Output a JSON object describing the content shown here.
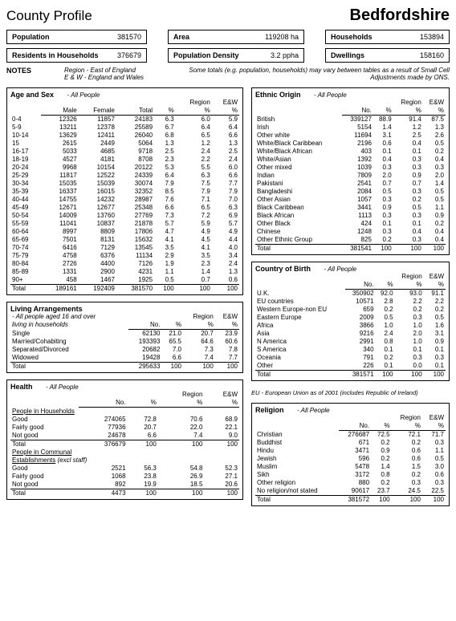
{
  "header": {
    "left": "County Profile",
    "right": "Bedfordshire"
  },
  "summary": {
    "left": [
      {
        "label": "Population",
        "value": "381570"
      },
      {
        "label": "Residents in Households",
        "value": "376679"
      }
    ],
    "mid": [
      {
        "label": "Area",
        "value": "119208 ha"
      },
      {
        "label": "Population Density",
        "value": "3.2 ppha"
      }
    ],
    "right": [
      {
        "label": "Households",
        "value": "153894"
      },
      {
        "label": "Dwellings",
        "value": "158160"
      }
    ]
  },
  "notes": {
    "label": "NOTES",
    "region_lines": [
      "Region - East of England",
      "E & W - England and Wales"
    ],
    "disclaimer": "Some totals (e.g. population, households) may vary between tables as a result of Small Cell Adjustments made by ONS."
  },
  "age_sex": {
    "title": "Age and Sex",
    "sub": "- All People",
    "cols": [
      "",
      "Male",
      "Female",
      "Total",
      "%",
      "Region %",
      "E&W %"
    ],
    "rows": [
      [
        "0-4",
        "12326",
        "11857",
        "24183",
        "6.3",
        "6.0",
        "5.9"
      ],
      [
        "5-9",
        "13211",
        "12378",
        "25589",
        "6.7",
        "6.4",
        "6.4"
      ],
      [
        "10-14",
        "13629",
        "12411",
        "26040",
        "6.8",
        "6.5",
        "6.6"
      ],
      [
        "15",
        "2615",
        "2449",
        "5064",
        "1.3",
        "1.2",
        "1.3"
      ],
      [
        "16-17",
        "5033",
        "4685",
        "9718",
        "2.5",
        "2.4",
        "2.5"
      ],
      [
        "18-19",
        "4527",
        "4181",
        "8708",
        "2.3",
        "2.2",
        "2.4"
      ],
      [
        "20-24",
        "9968",
        "10154",
        "20122",
        "5.3",
        "5.5",
        "6.0"
      ],
      [
        "25-29",
        "11817",
        "12522",
        "24339",
        "6.4",
        "6.3",
        "6.6"
      ],
      [
        "30-34",
        "15035",
        "15039",
        "30074",
        "7.9",
        "7.5",
        "7.7"
      ],
      [
        "35-39",
        "16337",
        "16015",
        "32352",
        "8.5",
        "7.9",
        "7.9"
      ],
      [
        "40-44",
        "14755",
        "14232",
        "28987",
        "7.6",
        "7.1",
        "7.0"
      ],
      [
        "45-49",
        "12671",
        "12677",
        "25348",
        "6.6",
        "6.5",
        "6.3"
      ],
      [
        "50-54",
        "14009",
        "13760",
        "27769",
        "7.3",
        "7.2",
        "6.9"
      ],
      [
        "55-59",
        "11041",
        "10837",
        "21878",
        "5.7",
        "5.9",
        "5.7"
      ],
      [
        "60-64",
        "8997",
        "8809",
        "17806",
        "4.7",
        "4.9",
        "4.9"
      ],
      [
        "65-69",
        "7501",
        "8131",
        "15632",
        "4.1",
        "4.5",
        "4.4"
      ],
      [
        "70-74",
        "6416",
        "7129",
        "13545",
        "3.5",
        "4.1",
        "4.0"
      ],
      [
        "75-79",
        "4758",
        "6376",
        "11134",
        "2.9",
        "3.5",
        "3.4"
      ],
      [
        "80-84",
        "2726",
        "4400",
        "7126",
        "1.9",
        "2.3",
        "2.4"
      ],
      [
        "85-89",
        "1331",
        "2900",
        "4231",
        "1.1",
        "1.4",
        "1.3"
      ],
      [
        "90+",
        "458",
        "1467",
        "1925",
        "0.5",
        "0.7",
        "0.6"
      ]
    ],
    "total": [
      "Total",
      "189161",
      "192409",
      "381570",
      "100",
      "100",
      "100"
    ]
  },
  "living": {
    "title": "Living Arrangements",
    "sub_lines": [
      "- All people aged 16 and over",
      "living in households"
    ],
    "cols": [
      "",
      "No.",
      "%",
      "Region %",
      "E&W %"
    ],
    "rows": [
      [
        "Single",
        "62130",
        "21.0",
        "20.7",
        "23.9"
      ],
      [
        "Married/Cohabiting",
        "193393",
        "65.5",
        "64.6",
        "60.6"
      ],
      [
        "Separated/Divorced",
        "20682",
        "7.0",
        "7.3",
        "7.8"
      ],
      [
        "Widowed",
        "19428",
        "6.6",
        "7.4",
        "7.7"
      ]
    ],
    "total": [
      "Total",
      "295633",
      "100",
      "100",
      "100"
    ]
  },
  "health": {
    "title": "Health",
    "sub": "- All People",
    "cols": [
      "",
      "No.",
      "%",
      "Region %",
      "E&W %"
    ],
    "group1_label": "People in Households",
    "rows1": [
      [
        "Good",
        "274065",
        "72.8",
        "70.6",
        "68.9"
      ],
      [
        "Fairly good",
        "77936",
        "20.7",
        "22.0",
        "22.1"
      ],
      [
        "Not good",
        "24678",
        "6.6",
        "7.4",
        "9.0"
      ]
    ],
    "total1": [
      "Total",
      "376679",
      "100",
      "100",
      "100"
    ],
    "group2_label_a": "People in Communal",
    "group2_label_b": "Establishments",
    "group2_note": "(excl staff)",
    "rows2": [
      [
        "Good",
        "2521",
        "56.3",
        "54.8",
        "52.3"
      ],
      [
        "Fairly good",
        "1068",
        "23.8",
        "26.9",
        "27.1"
      ],
      [
        "Not good",
        "892",
        "19.9",
        "18.5",
        "20.6"
      ]
    ],
    "total2": [
      "Total",
      "4473",
      "100",
      "100",
      "100"
    ]
  },
  "ethnic": {
    "title": "Ethnic Origin",
    "sub": "- All People",
    "cols": [
      "",
      "No.",
      "%",
      "Region %",
      "E&W %"
    ],
    "rows": [
      [
        "British",
        "339127",
        "88.9",
        "91.4",
        "87.5"
      ],
      [
        "Irish",
        "5154",
        "1.4",
        "1.2",
        "1.3"
      ],
      [
        "Other white",
        "11694",
        "3.1",
        "2.5",
        "2.6"
      ],
      [
        "White/Black Caribbean",
        "2196",
        "0.6",
        "0.4",
        "0.5"
      ],
      [
        "White/Black African",
        "403",
        "0.1",
        "0.1",
        "0.2"
      ],
      [
        "White/Asian",
        "1392",
        "0.4",
        "0.3",
        "0.4"
      ],
      [
        "Other mixed",
        "1039",
        "0.3",
        "0.3",
        "0.3"
      ],
      [
        "Indian",
        "7809",
        "2.0",
        "0.9",
        "2.0"
      ],
      [
        "Pakistani",
        "2541",
        "0.7",
        "0.7",
        "1.4"
      ],
      [
        "Bangladeshi",
        "2084",
        "0.5",
        "0.3",
        "0.5"
      ],
      [
        "Other Asian",
        "1057",
        "0.3",
        "0.2",
        "0.5"
      ],
      [
        "Black Caribbean",
        "3441",
        "0.9",
        "0.5",
        "1.1"
      ],
      [
        "Black African",
        "1113",
        "0.3",
        "0.3",
        "0.9"
      ],
      [
        "Other Black",
        "424",
        "0.1",
        "0.1",
        "0.2"
      ],
      [
        "Chinese",
        "1248",
        "0.3",
        "0.4",
        "0.4"
      ],
      [
        "Other Ethnic Group",
        "825",
        "0.2",
        "0.3",
        "0.4"
      ]
    ],
    "total": [
      "Total",
      "381541",
      "100",
      "100",
      "100"
    ]
  },
  "country": {
    "title": "Country of Birth",
    "sub": "- All People",
    "cols": [
      "",
      "No.",
      "%",
      "Region %",
      "E&W %"
    ],
    "rows": [
      [
        "U.K.",
        "350902",
        "92.0",
        "93.0",
        "91.1"
      ],
      [
        "EU countries",
        "10571",
        "2.8",
        "2.2",
        "2.2"
      ],
      [
        "Western Europe-non EU",
        "659",
        "0.2",
        "0.2",
        "0.2"
      ],
      [
        "Eastern Europe",
        "2009",
        "0.5",
        "0.3",
        "0.5"
      ],
      [
        "Africa",
        "3866",
        "1.0",
        "1.0",
        "1.6"
      ],
      [
        "Asia",
        "9216",
        "2.4",
        "2.0",
        "3.1"
      ],
      [
        "N America",
        "2991",
        "0.8",
        "1.0",
        "0.9"
      ],
      [
        "S America",
        "340",
        "0.1",
        "0.1",
        "0.1"
      ],
      [
        "Oceania",
        "791",
        "0.2",
        "0.3",
        "0.3"
      ],
      [
        "Other",
        "226",
        "0.1",
        "0.0",
        "0.1"
      ]
    ],
    "total": [
      "Total",
      "381571",
      "100",
      "100",
      "100"
    ],
    "footnote": "EU - European Union as of 2001 (includes Republic of Ireland)"
  },
  "religion": {
    "title": "Religion",
    "sub": "- All People",
    "cols": [
      "",
      "No.",
      "%",
      "Region %",
      "E&W %"
    ],
    "rows": [
      [
        "Christian",
        "276687",
        "72.5",
        "72.1",
        "71.7"
      ],
      [
        "Buddhist",
        "671",
        "0.2",
        "0.2",
        "0.3"
      ],
      [
        "Hindu",
        "3471",
        "0.9",
        "0.6",
        "1.1"
      ],
      [
        "Jewish",
        "596",
        "0.2",
        "0.6",
        "0.5"
      ],
      [
        "Muslim",
        "5478",
        "1.4",
        "1.5",
        "3.0"
      ],
      [
        "Sikh",
        "3172",
        "0.8",
        "0.2",
        "0.6"
      ],
      [
        "Other religion",
        "880",
        "0.2",
        "0.3",
        "0.3"
      ],
      [
        "No religion/not stated",
        "90617",
        "23.7",
        "24.5",
        "22.5"
      ]
    ],
    "total": [
      "Total",
      "381572",
      "100",
      "100",
      "100"
    ]
  }
}
